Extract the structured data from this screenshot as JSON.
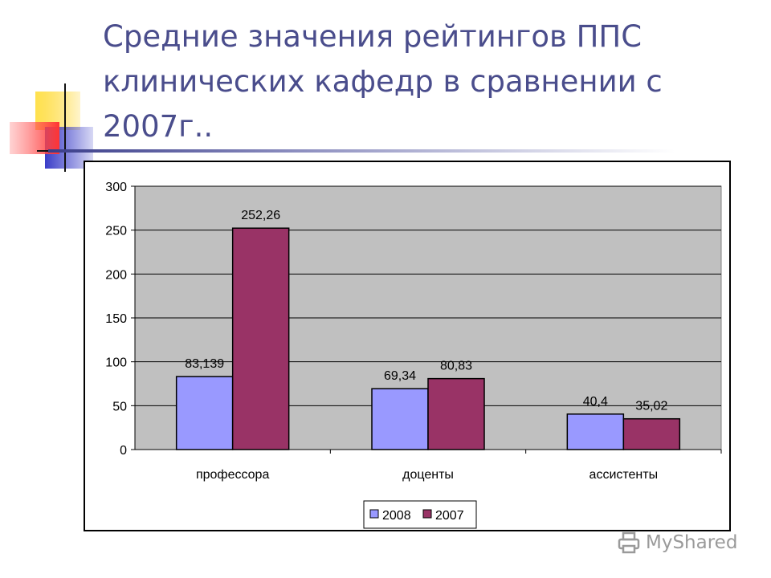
{
  "slide": {
    "title": "Средние значения рейтингов ППС клинических кафедр в сравнении с 2007г.."
  },
  "watermark": {
    "text": "MyShared",
    "icon": "printer-icon"
  },
  "colors": {
    "title": "#4a4d8c",
    "plot_bg": "#c0c0c0",
    "series_2008": "#9999ff",
    "series_2007": "#993366"
  },
  "chart_data": {
    "type": "bar",
    "categories": [
      "профессора",
      "доценты",
      "ассистенты"
    ],
    "series": [
      {
        "name": "2008",
        "values": [
          83.139,
          69.34,
          40.4
        ],
        "labels": [
          "83,139",
          "69,34",
          "40,4"
        ],
        "color": "#9999ff"
      },
      {
        "name": "2007",
        "values": [
          252.26,
          80.83,
          35.02
        ],
        "labels": [
          "252,26",
          "80,83",
          "35,02"
        ],
        "color": "#993366"
      }
    ],
    "ylim": [
      0,
      300
    ],
    "yticks": [
      0,
      50,
      100,
      150,
      200,
      250,
      300
    ],
    "grid": true,
    "legend": "bottom-center",
    "title": "",
    "xlabel": "",
    "ylabel": ""
  }
}
